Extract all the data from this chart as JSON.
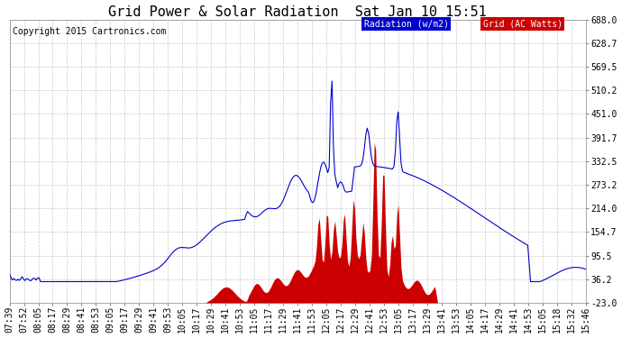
{
  "title": "Grid Power & Solar Radiation  Sat Jan 10 15:51",
  "copyright": "Copyright 2015 Cartronics.com",
  "yticks": [
    688.0,
    628.7,
    569.5,
    510.2,
    451.0,
    391.7,
    332.5,
    273.2,
    214.0,
    154.7,
    95.5,
    36.2,
    -23.0
  ],
  "ymin": -23.0,
  "ymax": 688.0,
  "bg_color": "#ffffff",
  "plot_bg": "#ffffff",
  "grid_color": "#bbbbbb",
  "radiation_color": "#0000cc",
  "grid_power_color": "#cc0000",
  "title_fontsize": 11,
  "copyright_fontsize": 7,
  "tick_fontsize": 7,
  "xtick_labels": [
    "07:39",
    "07:52",
    "08:05",
    "08:17",
    "08:29",
    "08:41",
    "08:53",
    "09:05",
    "09:17",
    "09:29",
    "09:41",
    "09:53",
    "10:05",
    "10:17",
    "10:29",
    "10:41",
    "10:53",
    "11:05",
    "11:17",
    "11:29",
    "11:41",
    "11:53",
    "12:05",
    "12:17",
    "12:29",
    "12:41",
    "12:53",
    "13:05",
    "13:17",
    "13:29",
    "13:41",
    "13:53",
    "14:05",
    "14:17",
    "14:29",
    "14:41",
    "14:53",
    "15:05",
    "15:18",
    "15:32",
    "15:46"
  ],
  "n_points": 410
}
